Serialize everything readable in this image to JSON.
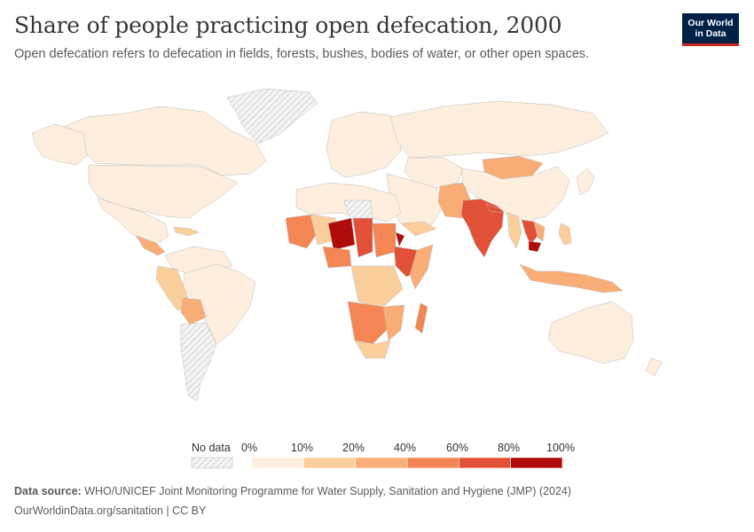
{
  "title": "Share of people practicing open defecation, 2000",
  "subtitle": "Open defecation refers to defecation in fields, forests, bushes, bodies of water, or other open spaces.",
  "logo": {
    "line1": "Our World",
    "line2": "in Data"
  },
  "legend": {
    "no_data_label": "No data",
    "ticks": [
      "0%",
      "10%",
      "20%",
      "40%",
      "60%",
      "80%",
      "100%"
    ],
    "colors": [
      "#fdeedd",
      "#fbcf9c",
      "#f8ad76",
      "#f38654",
      "#e05137",
      "#b10c0c"
    ],
    "no_data_pattern": "hatched-grey"
  },
  "footer": {
    "source_label": "Data source:",
    "source_text": "WHO/UNICEF Joint Monitoring Programme for Water Supply, Sanitation and Hygiene (JMP) (2024)",
    "credit": "OurWorldinData.org/sanitation | CC BY"
  }
}
